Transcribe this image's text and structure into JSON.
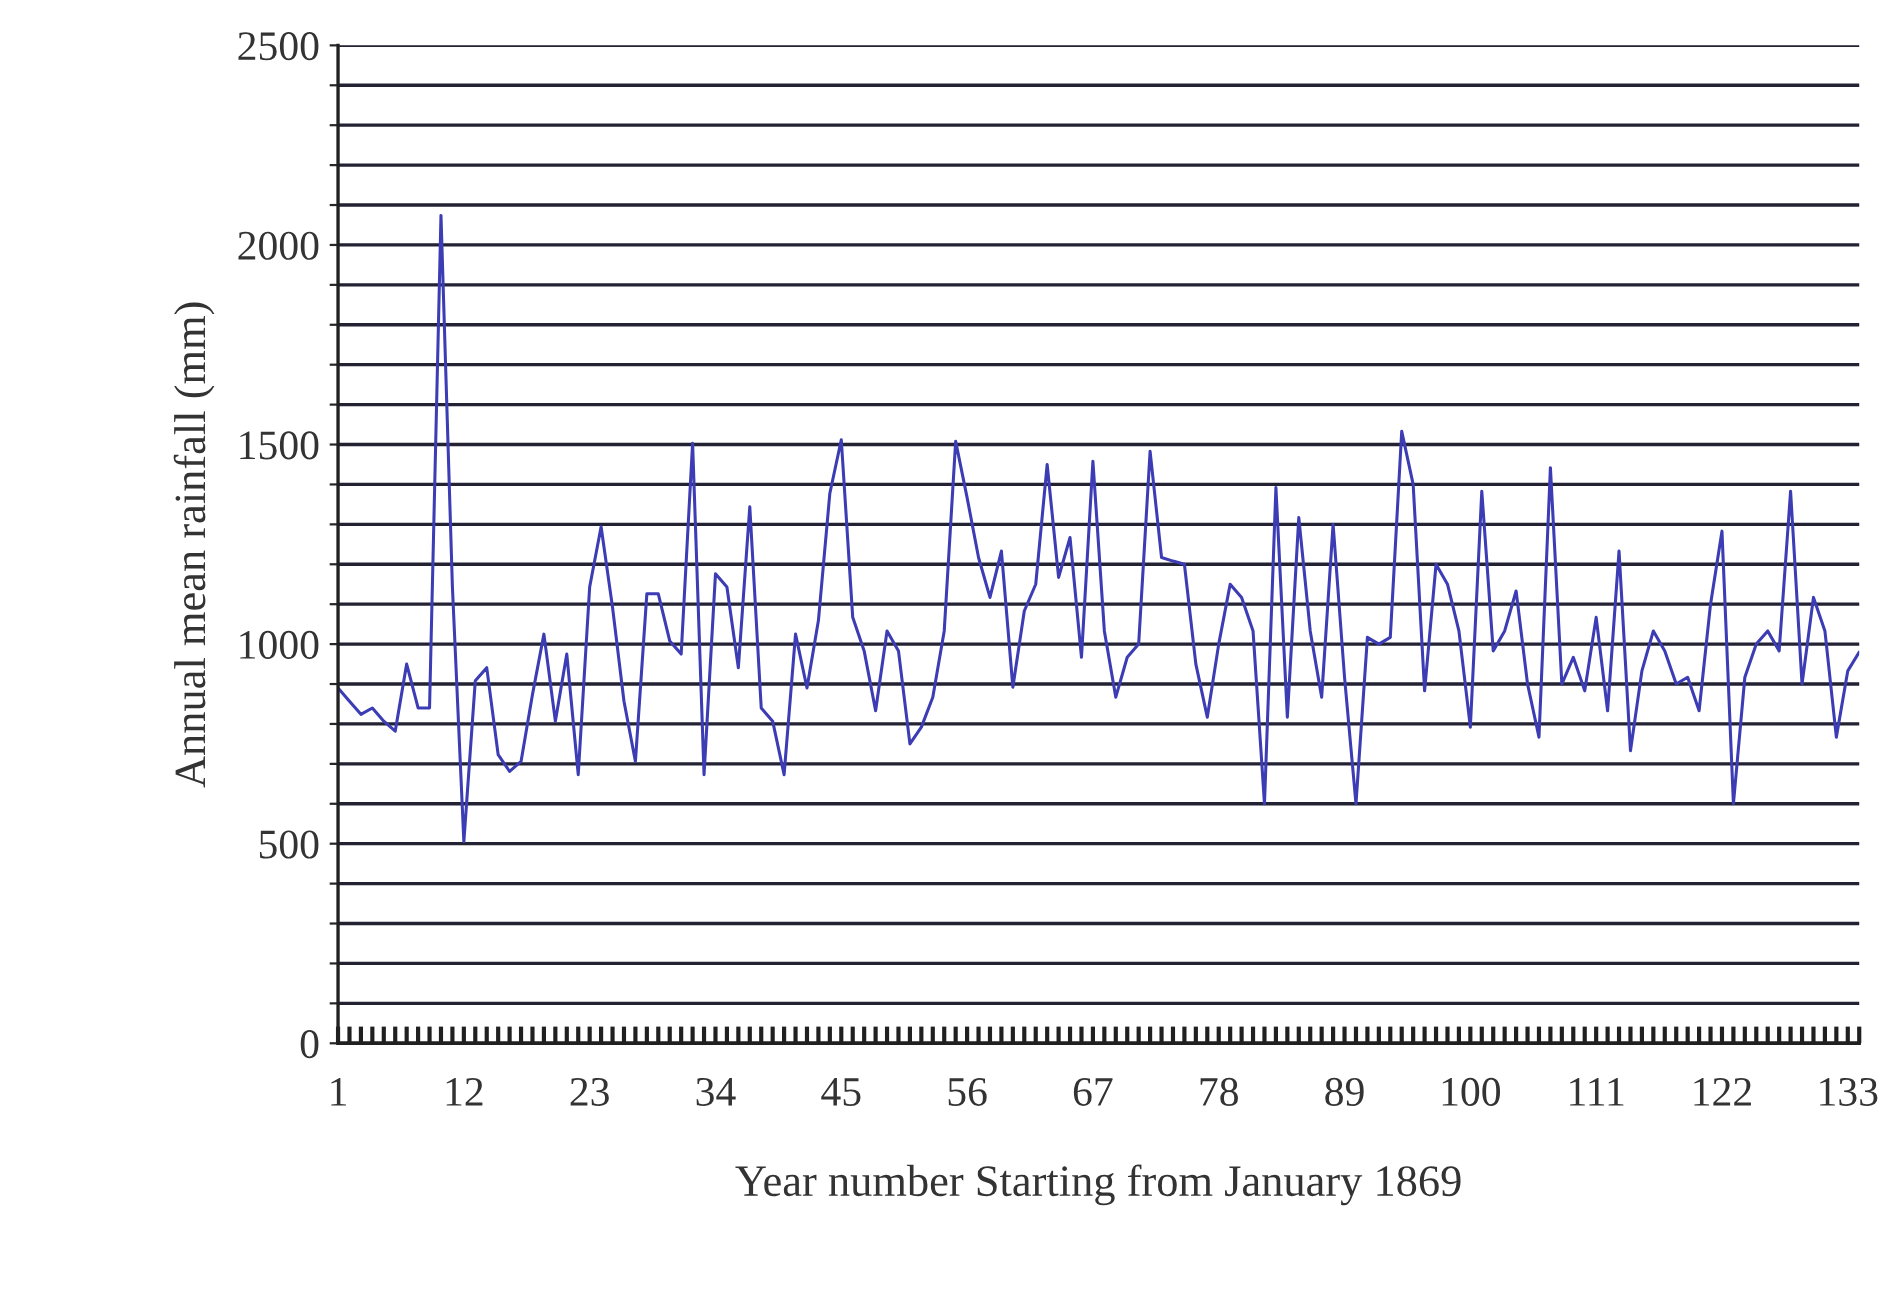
{
  "chart_data": {
    "type": "line",
    "xlabel": "Year number Starting from January 1869",
    "ylabel": "Annual mean rainfall (mm)",
    "x": [
      1,
      2,
      3,
      4,
      5,
      6,
      7,
      8,
      9,
      10,
      11,
      12,
      13,
      14,
      15,
      16,
      17,
      18,
      19,
      20,
      21,
      22,
      23,
      24,
      25,
      26,
      27,
      28,
      29,
      30,
      31,
      32,
      33,
      34,
      35,
      36,
      37,
      38,
      39,
      40,
      41,
      42,
      43,
      44,
      45,
      46,
      47,
      48,
      49,
      50,
      51,
      52,
      53,
      54,
      55,
      56,
      57,
      58,
      59,
      60,
      61,
      62,
      63,
      64,
      65,
      66,
      67,
      68,
      69,
      70,
      71,
      72,
      73,
      74,
      75,
      76,
      77,
      78,
      79,
      80,
      81,
      82,
      83,
      84,
      85,
      86,
      87,
      88,
      89,
      90,
      91,
      92,
      93,
      94,
      95,
      96,
      97,
      98,
      99,
      100,
      101,
      102,
      103,
      104,
      105,
      106,
      107,
      108,
      109,
      110,
      111,
      112,
      113,
      114,
      115,
      116,
      117,
      118,
      119,
      120,
      121,
      122,
      123,
      124,
      125,
      126,
      127,
      128,
      129,
      130,
      131,
      132,
      133,
      134
    ],
    "series": [
      {
        "color": "#3c3cb4",
        "values": [
          890,
          857,
          824,
          840,
          807,
          782,
          950,
          840,
          840,
          2074,
          1143,
          505,
          908,
          941,
          723,
          681,
          706,
          874,
          1025,
          807,
          975,
          673,
          1143,
          1294,
          1092,
          857,
          706,
          1126,
          1126,
          1008,
          975,
          1503,
          673,
          1176,
          1143,
          941,
          1344,
          840,
          807,
          673,
          1025,
          890,
          1059,
          1378,
          1512,
          1067,
          983,
          833,
          1033,
          983,
          750,
          792,
          867,
          1033,
          1508,
          1367,
          1217,
          1117,
          1233,
          892,
          1083,
          1150,
          1450,
          1167,
          1267,
          967,
          1458,
          1033,
          867,
          967,
          1000,
          1483,
          1217,
          1208,
          1200,
          950,
          817,
          1000,
          1150,
          1117,
          1033,
          600,
          1392,
          817,
          1317,
          1033,
          867,
          1300,
          917,
          600,
          1017,
          1000,
          1017,
          1533,
          1400,
          883,
          1200,
          1150,
          1033,
          792,
          1383,
          983,
          1033,
          1133,
          900,
          767,
          1442,
          900,
          967,
          883,
          1067,
          833,
          1233,
          733,
          933,
          1033,
          983,
          900,
          917,
          833,
          1100,
          1283,
          600,
          917,
          1000,
          1033,
          983,
          1383,
          900,
          1117,
          1033,
          767,
          933,
          980
        ]
      }
    ],
    "xlim": [
      1,
      134
    ],
    "xticks": [
      1,
      12,
      23,
      34,
      45,
      56,
      67,
      78,
      89,
      100,
      111,
      122,
      133
    ],
    "ylim": [
      0,
      2500
    ],
    "yticks": [
      0,
      {
        "value": 100,
        "label": null
      },
      {
        "value": 200,
        "label": null
      },
      {
        "value": 300,
        "label": null
      },
      {
        "value": 400,
        "label": null
      },
      500,
      {
        "value": 600,
        "label": null
      },
      {
        "value": 700,
        "label": null
      },
      {
        "value": 800,
        "label": null
      },
      {
        "value": 900,
        "label": null
      },
      1000,
      {
        "value": 1100,
        "label": null
      },
      {
        "value": 1200,
        "label": null
      },
      {
        "value": 1300,
        "label": null
      },
      {
        "value": 1400,
        "label": null
      },
      1500,
      {
        "value": 1600,
        "label": null
      },
      {
        "value": 1700,
        "label": null
      },
      {
        "value": 1800,
        "label": null
      },
      {
        "value": 1900,
        "label": null
      },
      2000,
      {
        "value": 2100,
        "label": null
      },
      {
        "value": 2200,
        "label": null
      },
      {
        "value": 2300,
        "label": null
      },
      {
        "value": 2400,
        "label": null
      },
      2500
    ],
    "grid": "y",
    "marker": "none",
    "line_style": "solid"
  }
}
